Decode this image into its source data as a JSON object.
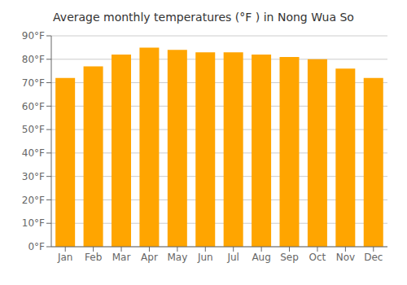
{
  "chart_data": {
    "type": "bar",
    "title": "Average monthly temperatures (°F ) in Nong Wua So",
    "categories": [
      "Jan",
      "Feb",
      "Mar",
      "Apr",
      "May",
      "Jun",
      "Jul",
      "Aug",
      "Sep",
      "Oct",
      "Nov",
      "Dec"
    ],
    "values": [
      72,
      77,
      82,
      85,
      84,
      83,
      83,
      82,
      81,
      80,
      76,
      72
    ],
    "color": "#FFA500",
    "ylim": [
      0,
      90
    ],
    "yticks": [
      {
        "value": 0,
        "label": "0°F"
      },
      {
        "value": 10,
        "label": "10°F"
      },
      {
        "value": 20,
        "label": "20°F"
      },
      {
        "value": 30,
        "label": "30°F"
      },
      {
        "value": 40,
        "label": "40°F"
      },
      {
        "value": 50,
        "label": "50°F"
      },
      {
        "value": 60,
        "label": "60°F"
      },
      {
        "value": 70,
        "label": "70°F"
      },
      {
        "value": 80,
        "label": "80°F"
      },
      {
        "value": 90,
        "label": "90°F"
      }
    ],
    "grid": true
  }
}
